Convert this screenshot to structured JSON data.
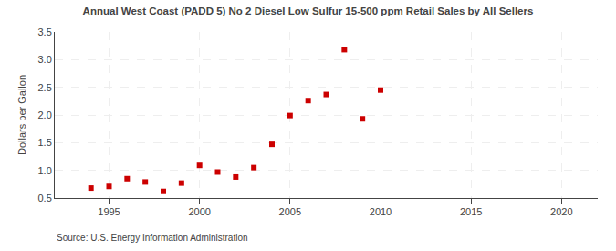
{
  "chart_data": {
    "type": "scatter",
    "title": "Annual West Coast (PADD 5) No 2 Diesel Low Sulfur 15-500 ppm Retail Sales by All Sellers",
    "ylabel": "Dollars per Gallon",
    "annotation": "Source: U.S. Energy Information Administration",
    "x": [
      1994,
      1995,
      1996,
      1997,
      1998,
      1999,
      2000,
      2001,
      2002,
      2003,
      2004,
      2005,
      2006,
      2007,
      2008,
      2009,
      2010
    ],
    "values": [
      0.68,
      0.71,
      0.85,
      0.79,
      0.62,
      0.77,
      1.09,
      0.97,
      0.88,
      1.05,
      1.47,
      1.99,
      2.26,
      2.37,
      3.18,
      1.93,
      2.45
    ],
    "color": "#cc0000",
    "marker": "square",
    "xlim": [
      1992,
      2022
    ],
    "ylim": [
      0.5,
      3.5
    ],
    "xticks": [
      1995,
      2000,
      2005,
      2010,
      2015,
      2020
    ],
    "yticks": [
      0.5,
      {
        "value": 1.0,
        "label": "1.0"
      },
      1.5,
      {
        "value": 2.0,
        "label": "2.0"
      },
      2.5,
      {
        "value": 3.0,
        "label": "3.0"
      },
      3.5
    ],
    "grid": true
  }
}
